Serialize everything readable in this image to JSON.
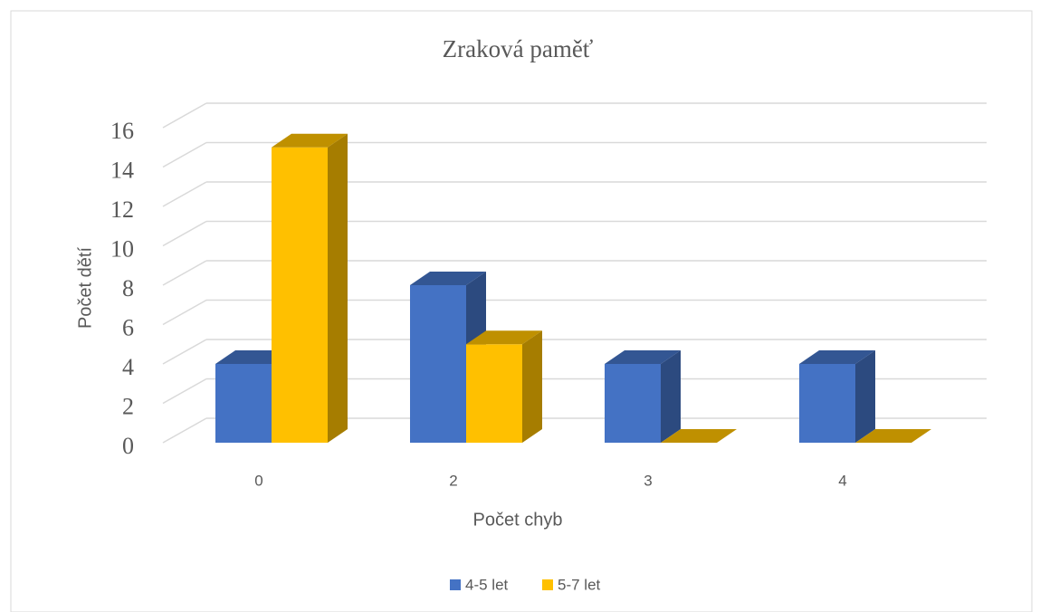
{
  "chart_data": {
    "type": "bar3d",
    "title": "Zraková paměť",
    "x_label": "Počet chyb",
    "y_label": "Počet dětí",
    "categories": [
      "0",
      "2",
      "3",
      "4"
    ],
    "series": [
      {
        "name": "4-5 let",
        "color": "#4472c4",
        "values": [
          4,
          8,
          4,
          4
        ]
      },
      {
        "name": "5-7 let",
        "color": "#ffc000",
        "values": [
          15,
          5,
          0,
          0
        ]
      }
    ],
    "ylim": [
      0,
      16
    ],
    "yticks": [
      0,
      2,
      4,
      6,
      8,
      10,
      12,
      14,
      16
    ],
    "grid": true,
    "legend": "bottom"
  }
}
